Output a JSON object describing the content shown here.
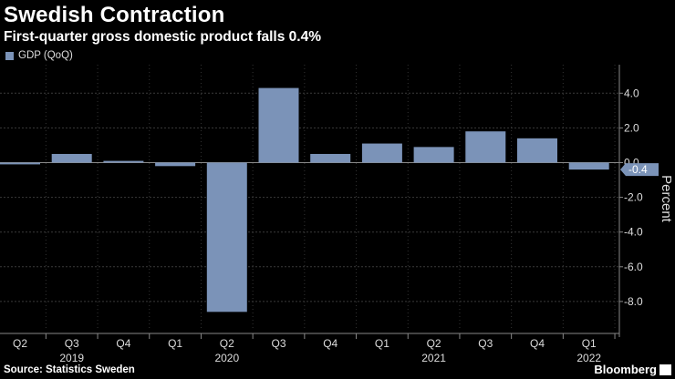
{
  "header": {
    "title": "Swedish Contraction",
    "subtitle": "First-quarter gross domestic product falls 0.4%"
  },
  "legend": {
    "label": "GDP (QoQ)",
    "color": "#7b93b8"
  },
  "footer": {
    "source": "Source: Statistics Sweden",
    "brand": "Bloomberg"
  },
  "chart_data": {
    "type": "bar",
    "title": "Swedish Contraction",
    "subtitle": "First-quarter gross domestic product falls 0.4%",
    "categories": [
      "Q2",
      "Q3",
      "Q4",
      "Q1",
      "Q2",
      "Q3",
      "Q4",
      "Q1",
      "Q2",
      "Q3",
      "Q4",
      "Q1"
    ],
    "years": [
      {
        "label": "2019",
        "category_index": 1
      },
      {
        "label": "2020",
        "category_index": 4
      },
      {
        "label": "2021",
        "category_index": 8
      },
      {
        "label": "2022",
        "category_index": 11
      }
    ],
    "series": [
      {
        "name": "GDP (QoQ)",
        "values": [
          -0.1,
          0.5,
          0.1,
          -0.2,
          -8.6,
          4.3,
          0.5,
          1.1,
          0.9,
          1.8,
          1.4,
          -0.4
        ]
      }
    ],
    "ylabel": "Percent",
    "xlabel": "",
    "ylim": [
      -9.0,
      5.5
    ],
    "yticks": [
      4.0,
      2.0,
      0.0,
      -2.0,
      -4.0,
      -6.0,
      -8.0
    ],
    "ytick_labels": [
      "4.0",
      "2.0",
      "0.0",
      "-2.0",
      "-4.0",
      "-6.0",
      "-8.0"
    ],
    "last_value_label": "-0.4",
    "grid": true,
    "bar_color": "#7b93b8",
    "legend_position": "top-left"
  }
}
